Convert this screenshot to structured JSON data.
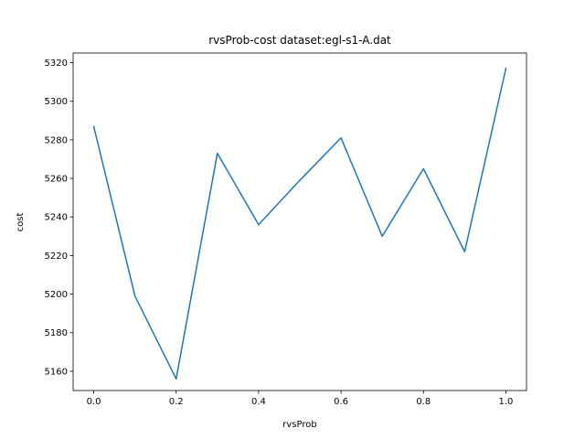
{
  "chart_data": {
    "type": "line",
    "title": "rvsProb-cost  dataset:egl-s1-A.dat",
    "xlabel": "rvsProb",
    "ylabel": "cost",
    "xlim": [
      -0.05,
      1.05
    ],
    "ylim": [
      5150,
      5325
    ],
    "xticks": [
      0.0,
      0.2,
      0.4,
      0.6,
      0.8,
      1.0
    ],
    "xtick_labels": [
      "0.0",
      "0.2",
      "0.4",
      "0.6",
      "0.8",
      "1.0"
    ],
    "yticks": [
      5160,
      5180,
      5200,
      5220,
      5240,
      5260,
      5280,
      5300,
      5320
    ],
    "ytick_labels": [
      "5160",
      "5180",
      "5200",
      "5220",
      "5240",
      "5260",
      "5280",
      "5300",
      "5320"
    ],
    "grid": false,
    "color": "#1f77b4",
    "x": [
      0.0,
      0.1,
      0.2,
      0.3,
      0.4,
      0.5,
      0.6,
      0.7,
      0.8,
      0.9,
      1.0
    ],
    "y": [
      5287,
      5199,
      5156,
      5273,
      5236,
      5259,
      5281,
      5230,
      5265,
      5222,
      5317
    ]
  }
}
